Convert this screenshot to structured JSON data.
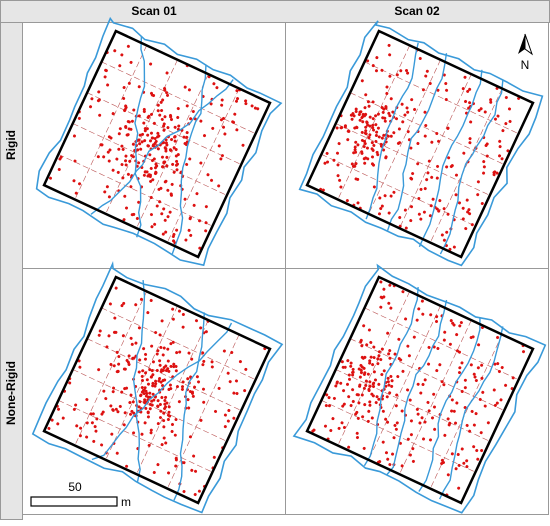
{
  "header": {
    "columns": [
      "Scan 01",
      "Scan 02"
    ]
  },
  "rows": [
    "Rigid",
    "None-Rigid"
  ],
  "north_label": "N",
  "scale_bar": {
    "value": 50,
    "unit": "m"
  }
}
